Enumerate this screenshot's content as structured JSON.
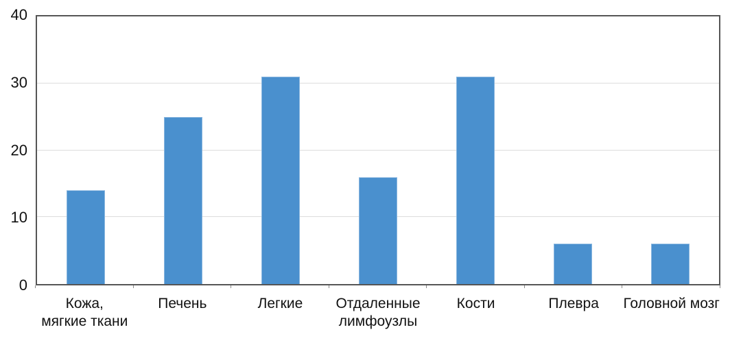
{
  "chart_data": {
    "type": "bar",
    "categories": [
      "Кожа,\nмягкие ткани",
      "Печень",
      "Легкие",
      "Отдаленные\nлимфоузлы",
      "Кости",
      "Плевра",
      "Головной мозг"
    ],
    "values": [
      14,
      25,
      31,
      16,
      31,
      6,
      6
    ],
    "title": "",
    "xlabel": "",
    "ylabel": "",
    "ylim": [
      0,
      40
    ],
    "yticks": [
      0,
      10,
      20,
      30,
      40
    ],
    "grid": true,
    "legend": null,
    "colors": {
      "bar": "#4A90CE",
      "axis_border": "#555555",
      "gridline": "#DCDCDC",
      "tick": "#8A8A8A",
      "label": "#111111"
    }
  }
}
